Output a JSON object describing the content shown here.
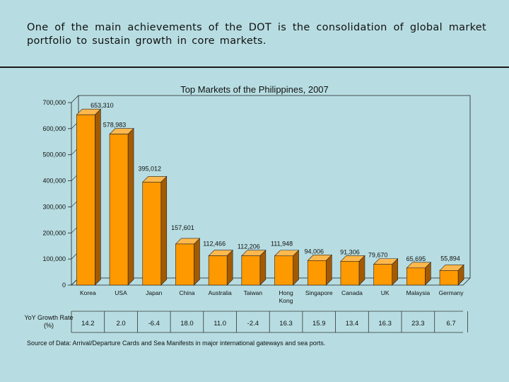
{
  "heading": "One of the main achievements of the DOT is the consolidation of global market portfolio to sustain growth in core markets.",
  "chart_data": {
    "type": "bar",
    "title": "Top Markets of the Philippines, 2007",
    "categories": [
      "Korea",
      "USA",
      "Japan",
      "China",
      "Australia",
      "Taiwan",
      "Hong Kong",
      "Singapore",
      "Canada",
      "UK",
      "Malaysia",
      "Germany"
    ],
    "values": [
      653310,
      578983,
      395012,
      157601,
      112466,
      112206,
      111948,
      94006,
      91306,
      79670,
      65695,
      55894
    ],
    "value_labels": [
      "653,310",
      "578,983",
      "395,012",
      "157,601",
      "112,466",
      "112,206",
      "111,948",
      "94,006",
      "91,306",
      "79,670",
      "65,695",
      "55,894"
    ],
    "ylim": [
      0,
      700000
    ],
    "yticks": [
      0,
      100000,
      200000,
      300000,
      400000,
      500000,
      600000,
      700000
    ],
    "ytick_labels": [
      "0",
      "100,000",
      "200,000",
      "300,000",
      "400,000",
      "500,000",
      "600,000",
      "700,000"
    ],
    "bar_color": "#ff9900",
    "grid": false,
    "xlabel": "",
    "ylabel": ""
  },
  "yoy": {
    "label": "YoY Growth Rate (%)",
    "values": [
      "14.2",
      "2.0",
      "-6.4",
      "18.0",
      "11.0",
      "-2.4",
      "16.3",
      "15.9",
      "13.4",
      "16.3",
      "23.3",
      "6.7"
    ]
  },
  "source": "Source of Data: Arrival/Departure Cards and Sea Manifests in major international gateways and sea ports."
}
